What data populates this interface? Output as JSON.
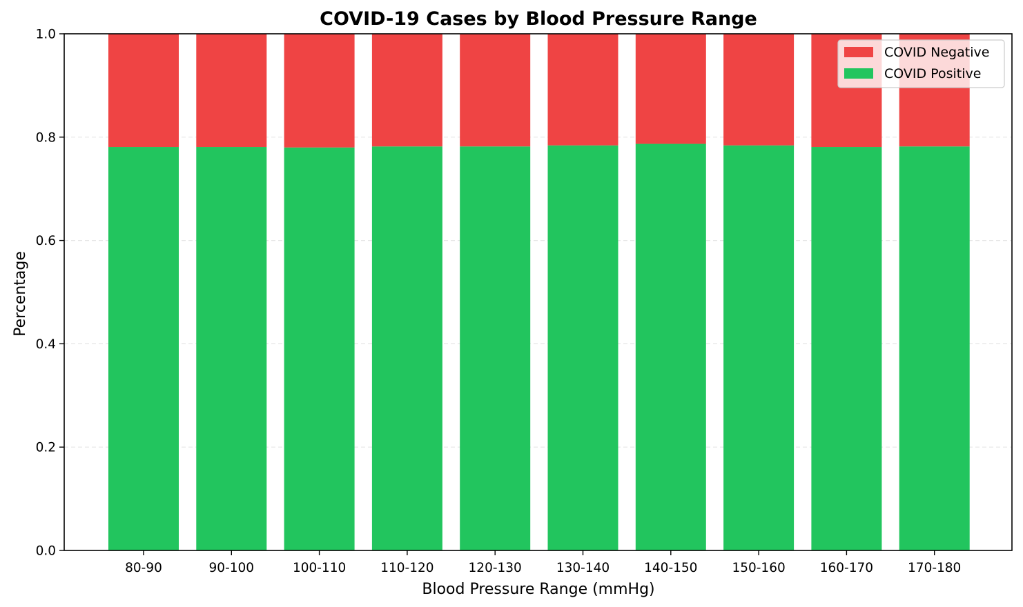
{
  "chart_data": {
    "type": "bar",
    "stacked": true,
    "title": "COVID-19 Cases by Blood Pressure Range",
    "xlabel": "Blood Pressure Range (mmHg)",
    "ylabel": "Percentage",
    "ylim": [
      0,
      1.0
    ],
    "yticks": [
      "0.0",
      "0.2",
      "0.4",
      "0.6",
      "0.8",
      "1.0"
    ],
    "grid": "y, dashed",
    "legend_position": "top-right",
    "categories": [
      "80-90",
      "90-100",
      "100-110",
      "110-120",
      "120-130",
      "130-140",
      "140-150",
      "150-160",
      "160-170",
      "170-180"
    ],
    "series": [
      {
        "name": "COVID Positive",
        "color": "#22c55e",
        "values": [
          0.781,
          0.781,
          0.78,
          0.782,
          0.782,
          0.784,
          0.787,
          0.784,
          0.781,
          0.782
        ]
      },
      {
        "name": "COVID Negative",
        "color": "#ef4444",
        "values": [
          0.219,
          0.219,
          0.22,
          0.218,
          0.218,
          0.216,
          0.213,
          0.216,
          0.219,
          0.218
        ]
      }
    ],
    "legend_order": [
      "COVID Negative",
      "COVID Positive"
    ]
  }
}
